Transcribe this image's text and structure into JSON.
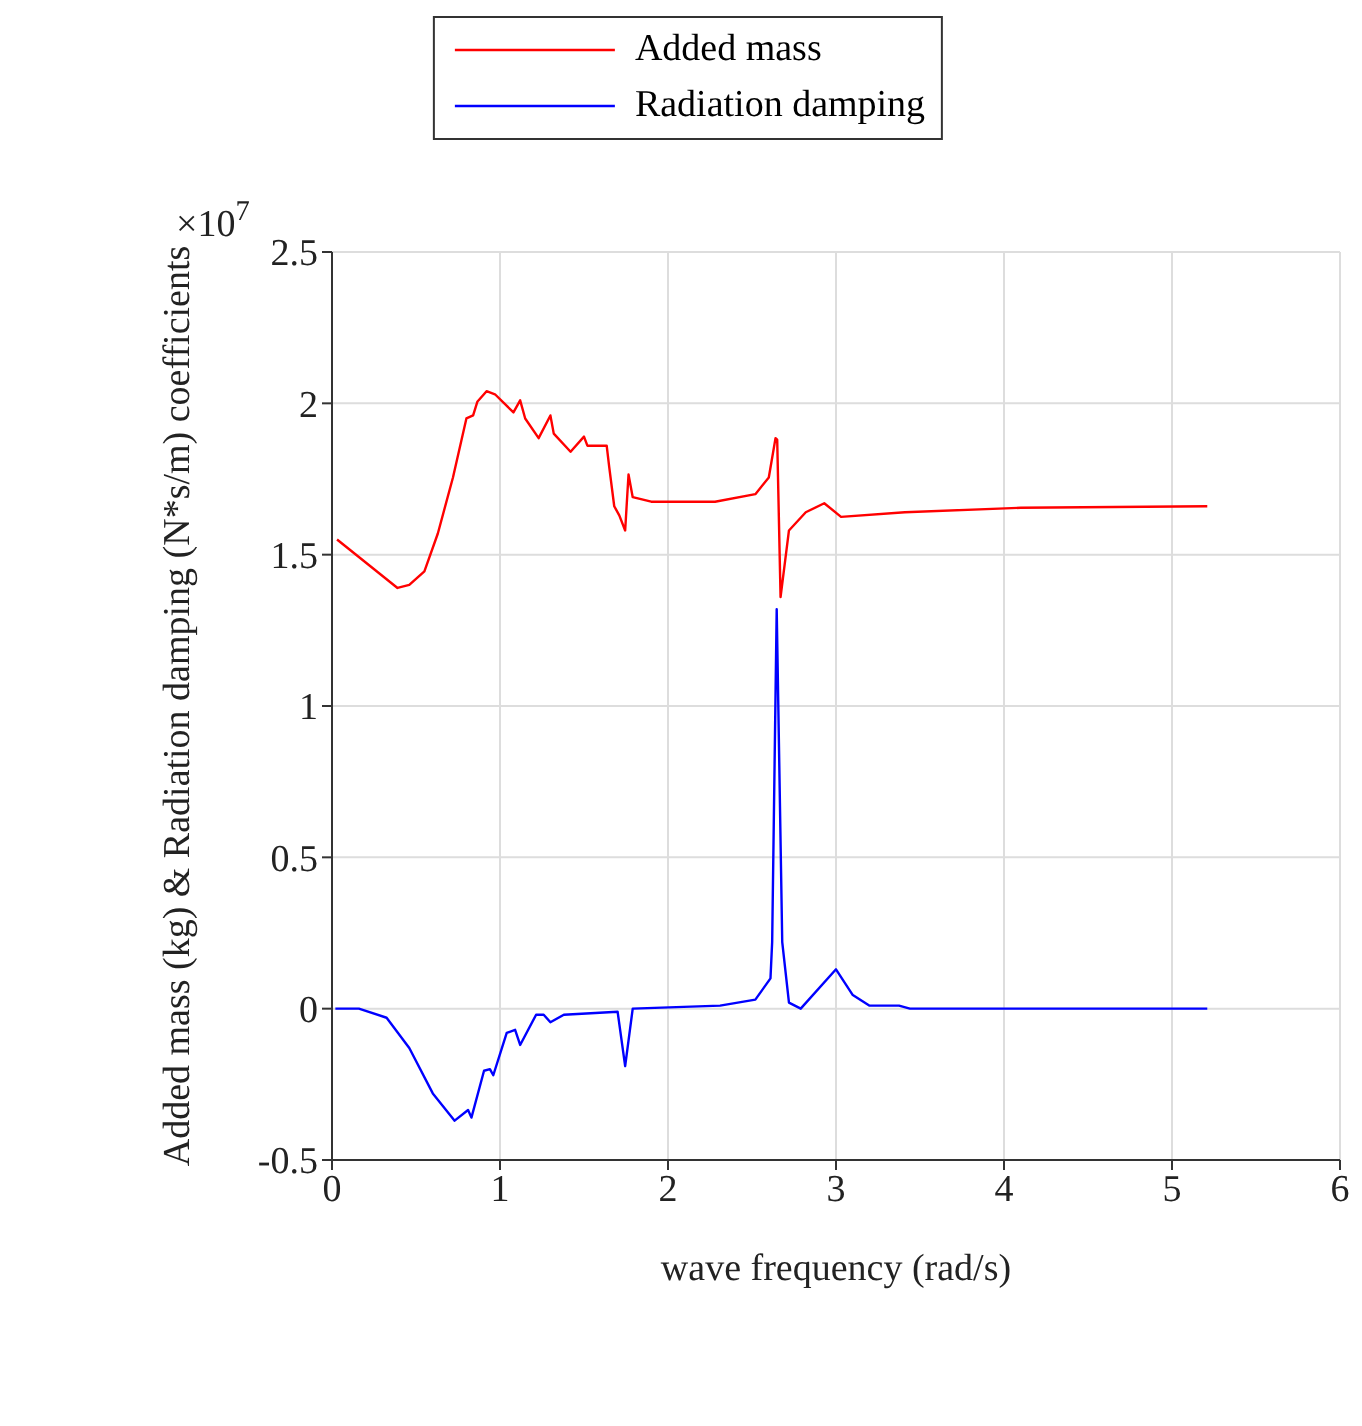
{
  "chart_data": {
    "type": "line",
    "xlabel": "wave frequency (rad/s)",
    "ylabel": "Added mass (kg) & Radiation damping (N*s/m) coefficients",
    "annotations": [
      "×10$^{7}$"
    ],
    "xlim": [
      0,
      6
    ],
    "xticks": [
      0,
      1,
      2,
      3,
      4,
      5,
      6
    ],
    "ylim": [
      -0.5,
      2.5
    ],
    "yticks": [
      -0.5,
      0,
      0.5,
      1,
      1.5,
      2,
      2.5
    ],
    "grid": true,
    "legend": "top",
    "series": [
      {
        "name": "Added mass",
        "color": "#ff0000",
        "x": [
          0.03,
          0.39,
          0.46,
          0.55,
          0.63,
          0.72,
          0.8,
          0.84,
          0.865,
          0.92,
          0.97,
          1.08,
          1.12,
          1.15,
          1.23,
          1.3,
          1.32,
          1.42,
          1.5,
          1.52,
          1.635,
          1.65,
          1.68,
          1.71,
          1.745,
          1.765,
          1.79,
          1.9,
          2.28,
          2.52,
          2.6,
          2.64,
          2.65,
          2.67,
          2.72,
          2.82,
          2.93,
          3.03,
          3.41,
          4.1,
          5.21
        ],
        "values": [
          1.55,
          1.39,
          1.4,
          1.445,
          1.57,
          1.755,
          1.95,
          1.96,
          2.005,
          2.04,
          2.03,
          1.97,
          2.01,
          1.95,
          1.885,
          1.96,
          1.9,
          1.84,
          1.89,
          1.86,
          1.86,
          1.79,
          1.66,
          1.63,
          1.58,
          1.765,
          1.69,
          1.675,
          1.675,
          1.7,
          1.755,
          1.885,
          1.88,
          1.36,
          1.58,
          1.64,
          1.67,
          1.625,
          1.64,
          1.655,
          1.66
        ]
      },
      {
        "name": "Radiation damping",
        "color": "#0000ff",
        "x": [
          0.02,
          0.16,
          0.325,
          0.46,
          0.6,
          0.73,
          0.81,
          0.83,
          0.905,
          0.94,
          0.96,
          1.04,
          1.09,
          1.12,
          1.215,
          1.26,
          1.3,
          1.38,
          1.7,
          1.745,
          1.79,
          2.31,
          2.52,
          2.61,
          2.62,
          2.647,
          2.68,
          2.72,
          2.79,
          3.0,
          3.1,
          3.2,
          3.375,
          3.44,
          5.21
        ],
        "values": [
          0,
          0,
          -0.03,
          -0.13,
          -0.28,
          -0.37,
          -0.335,
          -0.36,
          -0.205,
          -0.2,
          -0.22,
          -0.08,
          -0.07,
          -0.12,
          -0.02,
          -0.02,
          -0.045,
          -0.02,
          -0.01,
          -0.19,
          0,
          0.01,
          0.03,
          0.1,
          0.22,
          1.32,
          0.22,
          0.02,
          0,
          0.13,
          0.045,
          0.01,
          0.01,
          0,
          0
        ]
      }
    ]
  }
}
